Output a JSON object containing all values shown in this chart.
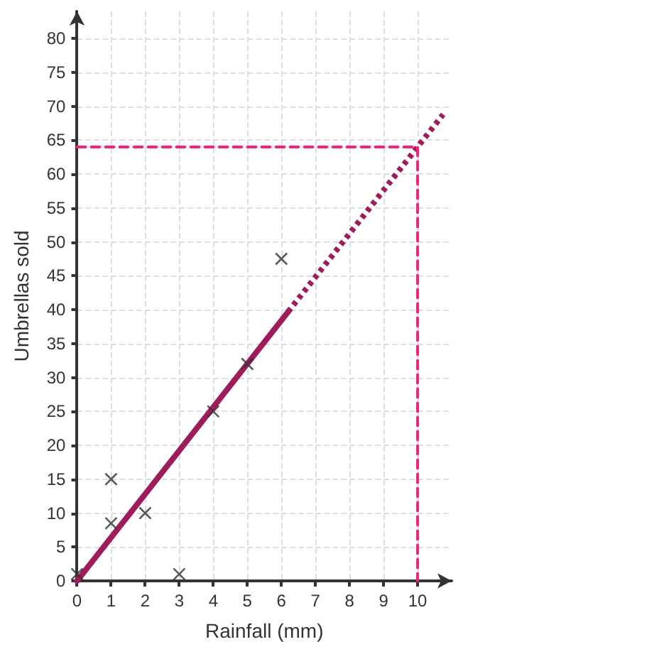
{
  "chart_data": {
    "type": "scatter",
    "xlabel": "Rainfall (mm)",
    "ylabel": "Umbrellas sold",
    "xlim": [
      0,
      11
    ],
    "xticks": [
      0,
      1,
      2,
      3,
      4,
      5,
      6,
      7,
      8,
      9,
      10
    ],
    "ylim": [
      0,
      84
    ],
    "yticks": [
      0,
      5,
      10,
      15,
      20,
      25,
      30,
      35,
      40,
      45,
      50,
      55,
      60,
      65,
      70,
      75,
      80
    ],
    "grid": true,
    "series": [
      {
        "marker": "cross",
        "color": "#333333",
        "x": [
          0,
          1,
          1,
          2,
          3,
          4,
          5,
          6
        ],
        "values": [
          1,
          15,
          8.5,
          10,
          1,
          25,
          32,
          47.5
        ]
      },
      {
        "type": "line",
        "marker": "none",
        "line_style": "solid",
        "color": "#9e1c5c",
        "x": [
          0,
          6.2
        ],
        "values": [
          0,
          39.7
        ]
      },
      {
        "type": "line",
        "marker": "none",
        "line_style": "dotted",
        "color": "#9e1c5c",
        "x": [
          6.2,
          10.75
        ],
        "values": [
          39.7,
          68.8
        ]
      },
      {
        "type": "line",
        "marker": "none",
        "line_style": "dashed",
        "color": "#f0237f",
        "x": [
          0,
          10,
          10
        ],
        "values": [
          64,
          64,
          0
        ]
      }
    ]
  }
}
